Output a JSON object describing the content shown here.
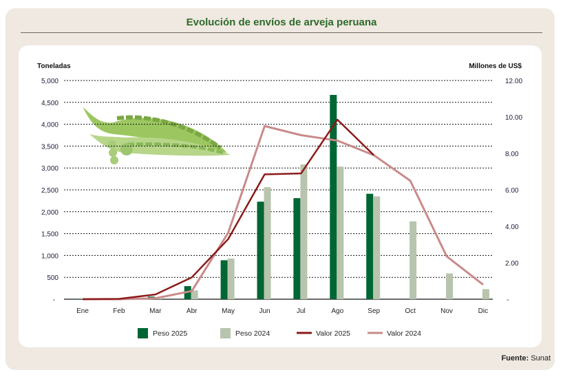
{
  "chart_data": {
    "type": "bar",
    "title": "Evolución de envíos de arveja peruana",
    "ylabel_left": "Toneladas",
    "ylabel_right": "Millones de US$",
    "ylim_left": [
      0,
      5000
    ],
    "ylim_right": [
      0,
      12
    ],
    "yticks_left": [
      "-",
      "500",
      "1,000",
      "1,500",
      "2,000",
      "2,500",
      "3,000",
      "3,500",
      "4,000",
      "4,500",
      "5,000"
    ],
    "yticks_right": [
      "-",
      "2.00",
      "4.00",
      "6.00",
      "8.00",
      "10.00",
      "12.00"
    ],
    "categories": [
      "Ene",
      "Feb",
      "Mar",
      "Abr",
      "May",
      "Jun",
      "Jul",
      "Ago",
      "Sep",
      "Oct",
      "Nov",
      "Dic"
    ],
    "grid": true,
    "legend_position": "bottom",
    "series": [
      {
        "name": "Peso 2025",
        "type": "bar",
        "axis": "left",
        "color": "#006633",
        "values": [
          10,
          5,
          60,
          300,
          890,
          2230,
          2310,
          4670,
          2410,
          null,
          null,
          null
        ]
      },
      {
        "name": "Peso 2024",
        "type": "bar",
        "axis": "left",
        "color": "#b8c4ad",
        "values": [
          15,
          5,
          10,
          200,
          930,
          2560,
          3080,
          3030,
          2350,
          1780,
          590,
          230
        ]
      },
      {
        "name": "Valor 2025",
        "type": "line",
        "axis": "right",
        "color": "#8b1a1a",
        "values": [
          0,
          0.02,
          0.26,
          1.2,
          3.3,
          6.85,
          6.9,
          9.85,
          7.9,
          null,
          null,
          null
        ]
      },
      {
        "name": "Valor 2024",
        "type": "line",
        "axis": "right",
        "color": "#c98a8a",
        "values": [
          0,
          0,
          0.05,
          0.45,
          3.65,
          9.5,
          9.0,
          8.7,
          7.9,
          6.5,
          2.35,
          0.8
        ]
      }
    ]
  },
  "footer": {
    "source_label": "Fuente:",
    "source_value": "Sunat"
  }
}
